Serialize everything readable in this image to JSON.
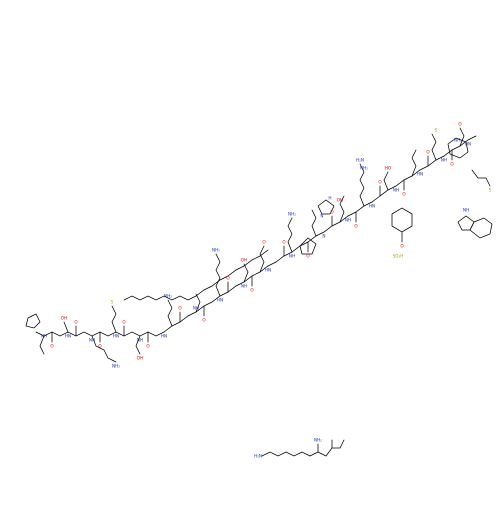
{
  "figure": {
    "type": "skeletal-structure",
    "background": "#ffffff",
    "colors": {
      "bond": "#000000",
      "oxygen": "#e00000",
      "nitrogen": "#1d2fd4",
      "sulfur": "#b8a000"
    }
  },
  "atom_labels": {
    "o": "O",
    "oh": "OH",
    "ho": "HO",
    "nh": "NH",
    "hn": "HN",
    "h": "H",
    "n": "N",
    "nh2": "NH₂",
    "h2n": "H₂N",
    "s": "S",
    "so3h": "SO₃H",
    "o_so3h": "O",
    "so3h_s": "S"
  }
}
